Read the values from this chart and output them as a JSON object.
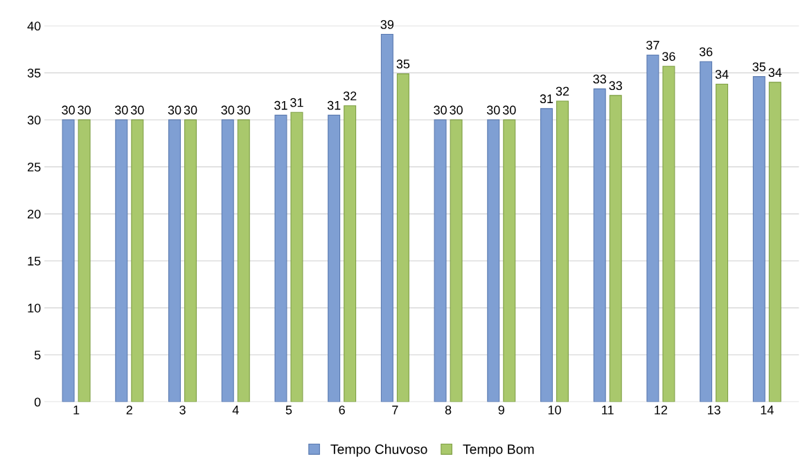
{
  "chart_data": {
    "type": "bar",
    "categories": [
      "1",
      "2",
      "3",
      "4",
      "5",
      "6",
      "7",
      "8",
      "9",
      "10",
      "11",
      "12",
      "13",
      "14"
    ],
    "series": [
      {
        "name": "Tempo Chuvoso",
        "color": "#7f9fd3",
        "values": [
          30,
          30,
          30,
          30,
          30.5,
          30.5,
          39.1,
          30,
          30,
          31.2,
          33.3,
          36.9,
          36.2,
          34.6
        ],
        "value_labels": [
          "30",
          "30",
          "30",
          "30",
          "31",
          "31",
          "39",
          "30",
          "30",
          "31",
          "33",
          "37",
          "36",
          "35"
        ]
      },
      {
        "name": "Tempo Bom",
        "color": "#a9c86c",
        "values": [
          30,
          30,
          30,
          30,
          30.8,
          31.5,
          34.9,
          30,
          30,
          32.0,
          32.6,
          35.7,
          33.8,
          34.0
        ],
        "value_labels": [
          "30",
          "30",
          "30",
          "30",
          "31",
          "32",
          "35",
          "30",
          "30",
          "32",
          "33",
          "36",
          "34",
          "34"
        ]
      }
    ],
    "ylim": [
      0,
      40
    ],
    "yticks": [
      0,
      5,
      10,
      15,
      20,
      25,
      30,
      35,
      40
    ],
    "grid": "y",
    "legend": "bottom"
  }
}
